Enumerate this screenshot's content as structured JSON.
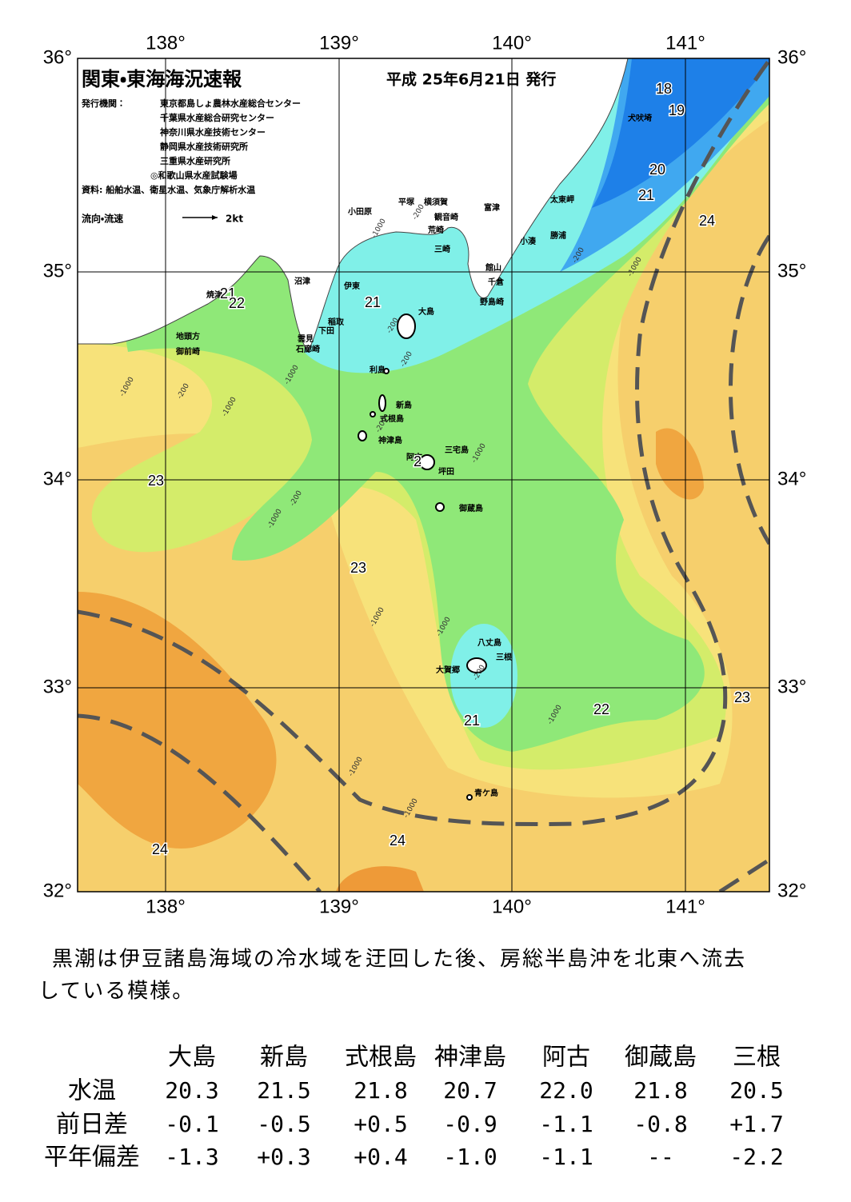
{
  "header": {
    "title": "関東・東海海況速報",
    "date": "平成 25年6月21日 発行",
    "publisher_label": "発行機関：",
    "publishers": [
      "東京都島しょ農林水産総合センター",
      "千葉県水産総合研究センター",
      "神奈川県水産技術センター",
      "静岡県水産技術研究所",
      "三重県水産研究所",
      "◎和歌山県水産試験場"
    ],
    "source": "資料: 船舶水温、衛星水温、気象庁解析水温",
    "current_label": "流向・流速",
    "current_scale": "2kt"
  },
  "map": {
    "lon_labels": [
      "138°",
      "139°",
      "140°",
      "141°"
    ],
    "lat_labels": [
      "36°",
      "35°",
      "34°",
      "33°",
      "32°"
    ],
    "place_labels": [
      "犬吠埼",
      "太東岬",
      "富津",
      "勝浦",
      "小湊",
      "館山",
      "千倉",
      "野島崎",
      "平塚",
      "横須賀",
      "観音崎",
      "荒崎",
      "三崎",
      "小田原",
      "沼津",
      "伊東",
      "稲取",
      "下田",
      "雲見",
      "石廊崎",
      "焼津",
      "地頭方",
      "御前崎",
      "大島",
      "利島",
      "新島",
      "式根島",
      "神津島",
      "三宅島",
      "阿古",
      "坪田",
      "御蔵島",
      "八丈島",
      "三根",
      "大賀郷",
      "青ケ島"
    ],
    "isotherm_labels": [
      "18",
      "19",
      "20",
      "21",
      "24",
      "21",
      "22",
      "21",
      "23",
      "23",
      "21",
      "22",
      "23",
      "24",
      "24",
      "2"
    ],
    "depth_labels": [
      "-1000",
      "-200",
      "-200",
      "-200",
      "-1000",
      "-1000",
      "-200",
      "-1000",
      "-200",
      "-200",
      "-1000",
      "-1000",
      "-1000",
      "-1000",
      "-200",
      "-1000",
      "-1000",
      "-1000",
      "-200",
      "-1000"
    ]
  },
  "commentary": [
    "黒潮は伊豆諸島海域の冷水域を迂回した後、房総半島沖を北東へ流去",
    "している模様。"
  ],
  "table": {
    "columns": [
      "大島",
      "新島",
      "式根島",
      "神津島",
      "阿古",
      "御蔵島",
      "三根"
    ],
    "rows": [
      {
        "label": "水温",
        "cells": [
          "20.3",
          "21.5",
          "21.8",
          "20.7",
          "22.0",
          "21.8",
          "20.5"
        ]
      },
      {
        "label": "前日差",
        "cells": [
          "-0.1",
          "-0.5",
          "+0.5",
          "-0.9",
          "-1.1",
          "-0.8",
          "+1.7"
        ]
      },
      {
        "label": "平年偏差",
        "cells": [
          "-1.3",
          "+0.3",
          "+0.4",
          "-1.0",
          "-1.1",
          "--",
          "-2.2"
        ]
      }
    ]
  }
}
